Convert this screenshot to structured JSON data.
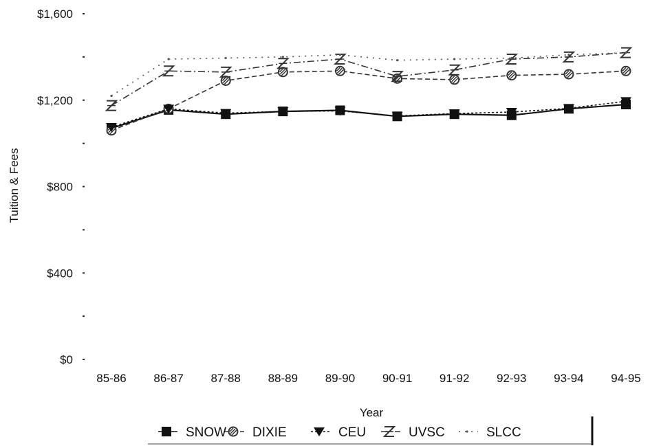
{
  "chart_data": {
    "type": "line",
    "title": "",
    "xlabel": "Year",
    "ylabel": "Tuition & Fees",
    "categories": [
      "85-86",
      "86-87",
      "87-88",
      "88-89",
      "89-90",
      "90-91",
      "91-92",
      "92-93",
      "93-94",
      "94-95"
    ],
    "y_ticks": [
      "$0",
      "$400",
      "$800",
      "$1,200",
      "$1,600"
    ],
    "ylim": [
      0,
      1600
    ],
    "legend_position": "bottom",
    "series": [
      {
        "name": "SNOW",
        "color": "#111111",
        "marker": "square",
        "values": [
          1070,
          1155,
          1135,
          1148,
          1153,
          1125,
          1135,
          1130,
          1160,
          1180
        ]
      },
      {
        "name": "DIXIE",
        "color": "#333333",
        "marker": "circle",
        "values": [
          1060,
          1160,
          1290,
          1330,
          1335,
          1300,
          1295,
          1315,
          1320,
          1335
        ]
      },
      {
        "name": "CEU",
        "color": "#111111",
        "marker": "triangle",
        "values": [
          1075,
          1160,
          1140,
          1148,
          1150,
          1127,
          1138,
          1145,
          1162,
          1195
        ]
      },
      {
        "name": "UVSC",
        "color": "#333333",
        "marker": "hourglass",
        "values": [
          1175,
          1335,
          1330,
          1370,
          1390,
          1310,
          1340,
          1390,
          1400,
          1420
        ]
      },
      {
        "name": "SLCC",
        "color": "#555555",
        "marker": "dot",
        "values": [
          1220,
          1390,
          1395,
          1400,
          1410,
          1385,
          1390,
          1395,
          1410,
          1420
        ]
      }
    ]
  }
}
